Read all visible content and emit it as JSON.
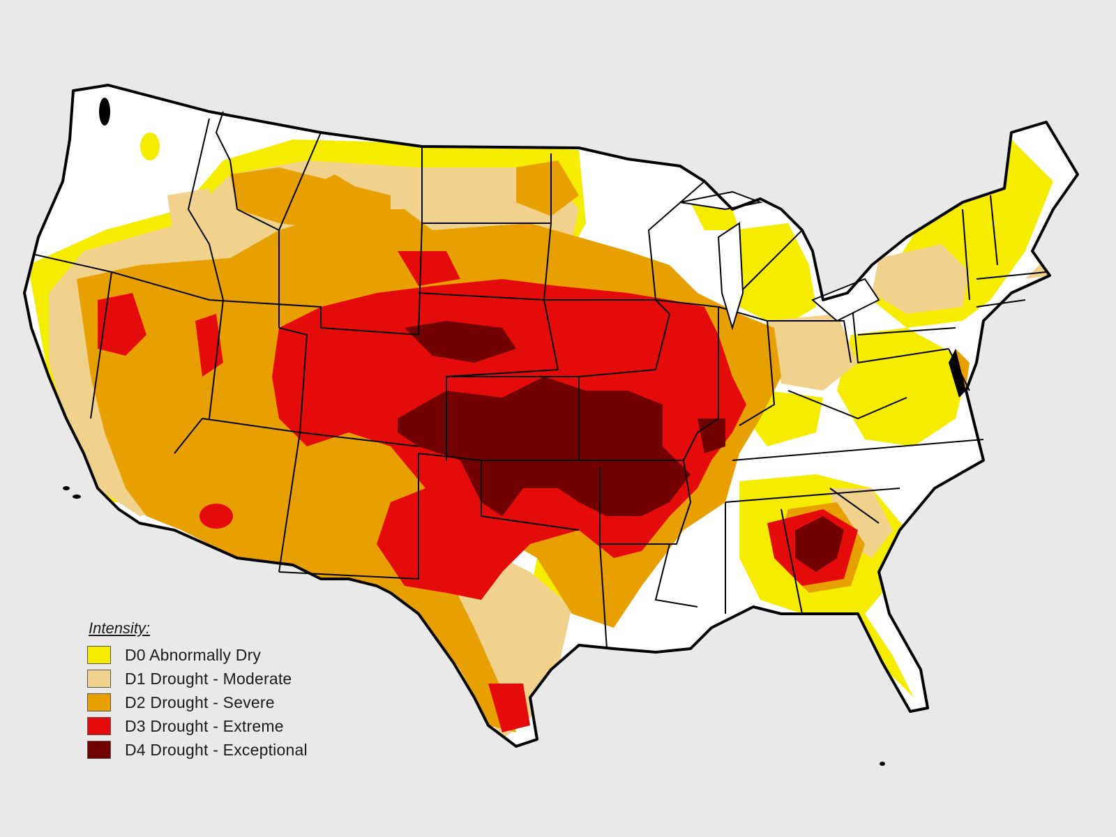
{
  "map": {
    "region": "Contiguous United States",
    "colors": {
      "background": "#e9e9e9",
      "land": "#ffffff",
      "outline": "#000000",
      "D0": "#f5ec00",
      "D1": "#f0d28c",
      "D2": "#e8a000",
      "D3": "#e50b0b",
      "D4": "#730000"
    }
  },
  "legend": {
    "title": "Intensity:",
    "items": [
      {
        "code": "D0",
        "label": "D0 Abnormally Dry",
        "color": "#f5ec00"
      },
      {
        "code": "D1",
        "label": "D1 Drought - Moderate",
        "color": "#f0d28c"
      },
      {
        "code": "D2",
        "label": "D2 Drought - Severe",
        "color": "#e8a000"
      },
      {
        "code": "D3",
        "label": "D3 Drought - Extreme",
        "color": "#e50b0b"
      },
      {
        "code": "D4",
        "label": "D4 Drought - Exceptional",
        "color": "#730000"
      }
    ]
  }
}
